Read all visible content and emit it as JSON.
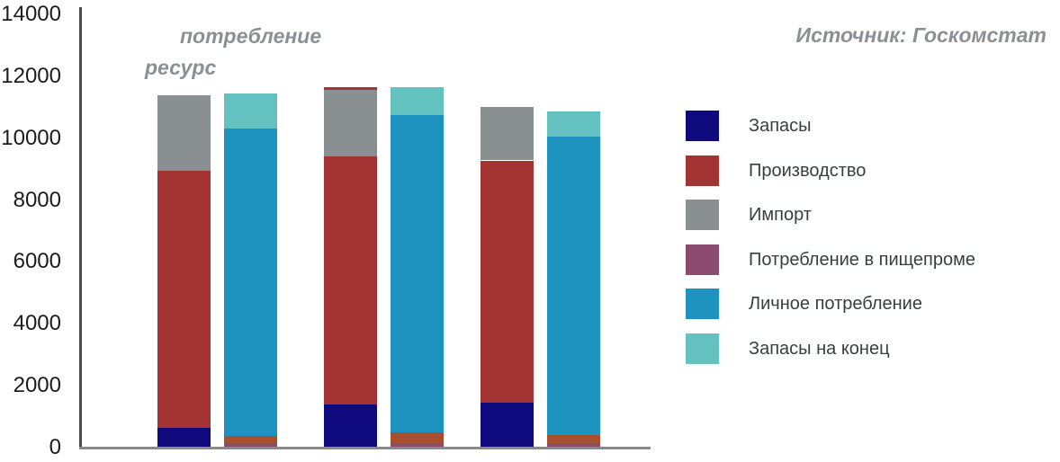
{
  "annotations": {
    "consumption_label": "потребление",
    "resource_label": "ресурс",
    "source_note": "Источник: Госкомстат"
  },
  "y_axis": {
    "tick_values": [
      14000,
      12000,
      10000,
      8000,
      6000,
      4000,
      2000,
      0
    ],
    "tick_labels": [
      "14000",
      "12000",
      "10000",
      "8000",
      "6000",
      "4000",
      "2000",
      "0"
    ],
    "min": 0,
    "max": 14000
  },
  "legend": {
    "position": "right",
    "items": [
      {
        "key": "zapasy",
        "label": "Запасы",
        "color": "#0e0a7d"
      },
      {
        "key": "proizvodstvo",
        "label": "Производство",
        "color": "#a43433"
      },
      {
        "key": "import",
        "label": "Импорт",
        "color": "#8a8f92"
      },
      {
        "key": "pishcheprom",
        "label": "Потребление в пищепроме",
        "color": "#8b4b71"
      },
      {
        "key": "lichnoe",
        "label": "Личное потребление",
        "color": "#1f93bf"
      },
      {
        "key": "zapasy-konets",
        "label": "Запасы на конец",
        "color": "#63c1c0"
      }
    ]
  },
  "chart_data": {
    "type": "bar",
    "stacked": true,
    "title": "",
    "ylabel": "",
    "xlabel": "",
    "ylim": [
      0,
      14000
    ],
    "grid": false,
    "x_tick_labels_visible": false,
    "legend_position": "right",
    "bar_pair_labels": [
      "ресурс",
      "потребление"
    ],
    "groups": [
      {
        "bars": [
          {
            "role": "ресурс",
            "total": 11400,
            "segments": [
              {
                "key": "zapasy",
                "name": "Запасы",
                "value": 650,
                "color": "#0e0a7d"
              },
              {
                "key": "proizvodstvo",
                "name": "Производство",
                "value": 8300,
                "color": "#a43433"
              },
              {
                "key": "import",
                "name": "Импорт",
                "value": 2450,
                "color": "#8a8f92"
              }
            ]
          },
          {
            "role": "потребление",
            "total": 11430,
            "segments": [
              {
                "key": "pishcheprom",
                "name": "Потребление в пищепроме",
                "value": 150,
                "color": "#8b4b71"
              },
              {
                "key": "unlabeled",
                "name": "unlabeled",
                "value": 240,
                "color": "#a8502e"
              },
              {
                "key": "lichnoe",
                "name": "Личное потребление",
                "value": 9920,
                "color": "#1f93bf"
              },
              {
                "key": "zapasy-konets",
                "name": "Запасы на конец",
                "value": 1120,
                "color": "#63c1c0"
              }
            ]
          }
        ]
      },
      {
        "bars": [
          {
            "role": "ресурс",
            "total": 11660,
            "segments": [
              {
                "key": "zapasy",
                "name": "Запасы",
                "value": 1400,
                "color": "#0e0a7d"
              },
              {
                "key": "proizvodstvo",
                "name": "Производство",
                "value": 8000,
                "color": "#a43433"
              },
              {
                "key": "import",
                "name": "Импорт",
                "value": 2170,
                "color": "#8a8f92"
              },
              {
                "key": "unlabeled-cap",
                "name": "unlabeled-cap",
                "value": 90,
                "color": "#a43433"
              }
            ]
          },
          {
            "role": "потребление",
            "total": 11640,
            "segments": [
              {
                "key": "pishcheprom",
                "name": "Потребление в пищепроме",
                "value": 150,
                "color": "#8b4b71"
              },
              {
                "key": "unlabeled",
                "name": "unlabeled",
                "value": 330,
                "color": "#a8502e"
              },
              {
                "key": "lichnoe",
                "name": "Личное потребление",
                "value": 10270,
                "color": "#1f93bf"
              },
              {
                "key": "zapasy-konets",
                "name": "Запасы на конец",
                "value": 890,
                "color": "#63c1c0"
              }
            ]
          }
        ]
      },
      {
        "bars": [
          {
            "role": "ресурс",
            "total": 11020,
            "segments": [
              {
                "key": "zapasy",
                "name": "Запасы",
                "value": 1450,
                "color": "#0e0a7d"
              },
              {
                "key": "proizvodstvo",
                "name": "Производство",
                "value": 7830,
                "color": "#a43433"
              },
              {
                "key": "import",
                "name": "Импорт",
                "value": 1740,
                "color": "#8a8f92"
              }
            ]
          },
          {
            "role": "потребление",
            "total": 10850,
            "segments": [
              {
                "key": "pishcheprom",
                "name": "Потребление в пищепроме",
                "value": 150,
                "color": "#8b4b71"
              },
              {
                "key": "unlabeled",
                "name": "unlabeled",
                "value": 270,
                "color": "#a8502e"
              },
              {
                "key": "lichnoe",
                "name": "Личное потребление",
                "value": 9630,
                "color": "#1f93bf"
              },
              {
                "key": "zapasy-konets",
                "name": "Запасы на конец",
                "value": 800,
                "color": "#63c1c0"
              }
            ]
          }
        ]
      }
    ]
  }
}
